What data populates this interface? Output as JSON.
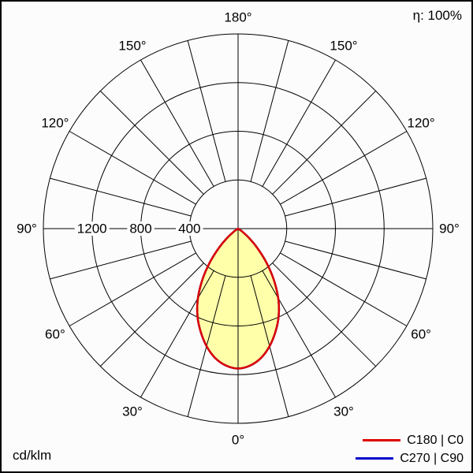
{
  "page": {
    "background": "#fcfcfc",
    "border_color": "#000000"
  },
  "efficiency_label": "η: 100%",
  "unit_label": "cd/klm",
  "legend": {
    "items": [
      {
        "label": "C180 | C0",
        "color": "#dd0000"
      },
      {
        "label": "C270 | C90",
        "color": "#0000cc"
      }
    ]
  },
  "chart_data": {
    "type": "polar",
    "subtype": "photometric_intensity_distribution",
    "unit": "cd/klm",
    "efficiency_percent": 100,
    "angle_tick_labels_deg": [
      0,
      30,
      60,
      90,
      120,
      150,
      180
    ],
    "spoke_step_deg": 15,
    "ring_values": [
      400,
      800,
      1200,
      1600
    ],
    "ring_label_values": [
      400,
      800,
      1200
    ],
    "r_axis_max": 1600,
    "grid_color": "#000000",
    "beam_fill_color": "#ffffaa",
    "series": [
      {
        "name": "C180 | C0",
        "color": "#dd0000",
        "gamma_deg": [
          0,
          5,
          10,
          15,
          20,
          25,
          30,
          35,
          40,
          45,
          50,
          55,
          60
        ],
        "values_cd_per_klm": [
          1150,
          1130,
          1080,
          1000,
          900,
          790,
          660,
          510,
          360,
          220,
          110,
          40,
          0
        ]
      },
      {
        "name": "C270 | C90",
        "color": "#0000cc",
        "gamma_deg": [
          0,
          5,
          10,
          15,
          20,
          25,
          30,
          35,
          40,
          45,
          50,
          55,
          60
        ],
        "values_cd_per_klm": [
          1150,
          1130,
          1080,
          1000,
          900,
          790,
          660,
          510,
          360,
          220,
          110,
          40,
          0
        ]
      }
    ]
  }
}
